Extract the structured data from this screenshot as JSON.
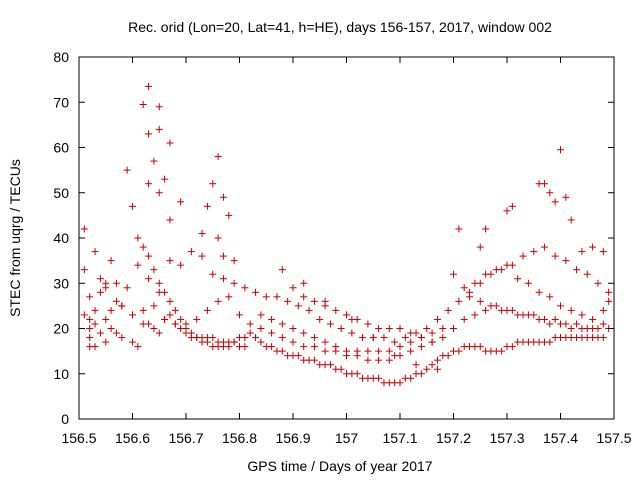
{
  "chart_data": {
    "type": "scatter",
    "title": "Rec. orid (Lon=20, Lat=41, h=HE), days 156-157, 2017, window 002",
    "xlabel": "GPS time / Days of year 2017",
    "ylabel": "STEC from uqrg / TECUs",
    "xlim": [
      156.5,
      157.5
    ],
    "ylim": [
      0,
      80
    ],
    "xticks": [
      "156.5",
      "156.6",
      "156.7",
      "156.8",
      "156.9",
      "157",
      "157.1",
      "157.2",
      "157.3",
      "157.4",
      "157.5"
    ],
    "xtick_values": [
      156.5,
      156.6,
      156.7,
      156.8,
      156.9,
      157.0,
      157.1,
      157.2,
      157.3,
      157.4,
      157.5
    ],
    "yticks": [
      "0",
      "10",
      "20",
      "30",
      "40",
      "50",
      "60",
      "70",
      "80"
    ],
    "ytick_values": [
      0,
      10,
      20,
      30,
      40,
      50,
      60,
      70,
      80
    ],
    "grid": false,
    "marker": "+",
    "marker_color": "#cc0000",
    "series": [
      {
        "name": "STEC",
        "x": [
          156.51,
          156.52,
          156.53,
          156.53,
          156.52,
          156.54,
          156.52,
          156.55,
          156.53,
          156.52,
          156.51,
          156.53,
          156.54,
          156.51,
          156.52,
          156.55,
          156.56,
          156.55,
          156.54,
          156.57,
          156.58,
          156.56,
          156.55,
          156.56,
          156.57,
          156.58,
          156.6,
          156.61,
          156.59,
          156.6,
          156.62,
          156.63,
          156.64,
          156.65,
          156.66,
          156.67,
          156.61,
          156.62,
          156.63,
          156.64,
          156.65,
          156.66,
          156.67,
          156.68,
          156.69,
          156.7,
          156.71,
          156.72,
          156.73,
          156.74,
          156.75,
          156.76,
          156.77,
          156.78,
          156.79,
          156.8,
          156.81,
          156.62,
          156.63,
          156.64,
          156.65,
          156.66,
          156.67,
          156.68,
          156.69,
          156.7,
          156.71,
          156.72,
          156.73,
          156.74,
          156.75,
          156.76,
          156.77,
          156.78,
          156.79,
          156.8,
          156.81,
          156.82,
          156.83,
          156.84,
          156.85,
          156.86,
          156.87,
          156.88,
          156.89,
          156.9,
          156.91,
          156.92,
          156.93,
          156.94,
          156.95,
          156.96,
          156.97,
          156.98,
          156.99,
          157.0,
          157.01,
          157.02,
          157.03,
          157.04,
          157.05,
          157.06,
          157.07,
          157.08,
          157.09,
          157.1,
          157.11,
          157.12,
          157.13,
          157.14,
          157.15,
          157.16,
          157.17,
          157.18,
          157.19,
          157.2,
          157.21,
          157.22,
          157.23,
          157.24,
          157.25,
          157.26,
          157.27,
          157.28,
          157.29,
          157.3,
          157.31,
          157.32,
          157.33,
          157.34,
          157.35,
          157.36,
          157.37,
          157.38,
          157.39,
          157.4,
          157.41,
          157.42,
          157.43,
          157.44,
          157.45,
          157.46,
          157.47,
          157.48,
          157.49,
          156.58,
          156.6,
          156.62,
          156.64,
          156.66,
          156.68,
          156.7,
          156.72,
          156.74,
          156.76,
          156.78,
          156.8,
          156.82,
          156.84,
          156.86,
          156.88,
          156.9,
          156.92,
          156.94,
          156.96,
          156.98,
          157.0,
          157.02,
          157.04,
          157.06,
          157.08,
          157.1,
          157.12,
          157.14,
          157.16,
          157.18,
          157.2,
          157.22,
          157.24,
          157.26,
          157.28,
          157.3,
          157.32,
          157.34,
          157.36,
          157.38,
          157.4,
          157.42,
          157.44,
          157.46,
          157.48,
          156.84,
          156.86,
          156.88,
          156.9,
          156.92,
          156.94,
          156.96,
          156.98,
          157.0,
          157.02,
          157.04,
          157.06,
          157.08,
          157.1,
          157.12,
          157.14,
          157.16,
          157.18,
          157.2,
          156.57,
          156.59,
          156.61,
          156.63,
          156.65,
          156.67,
          156.69,
          156.71,
          156.73,
          156.75,
          156.77,
          156.79,
          156.81,
          156.83,
          156.85,
          156.87,
          156.89,
          156.91,
          156.93,
          156.95,
          156.97,
          156.99,
          157.01,
          157.03,
          157.05,
          157.07,
          157.09,
          157.11,
          157.13,
          157.15,
          157.17,
          157.19,
          157.21,
          157.23,
          157.25,
          157.27,
          157.29,
          157.31,
          157.33,
          157.35,
          157.37,
          157.39,
          157.41,
          157.43,
          157.45,
          157.47,
          157.49,
          157.22,
          157.24,
          157.26,
          157.28,
          157.3,
          157.32,
          157.34,
          157.36,
          157.38,
          157.4,
          157.42,
          157.44,
          157.46,
          157.48,
          157.23,
          157.25,
          157.27,
          157.29,
          157.31,
          157.33,
          157.35,
          157.37,
          157.39,
          157.41,
          157.43,
          157.45,
          157.47,
          157.49,
          156.63,
          156.65,
          156.69,
          156.73,
          156.75,
          156.76,
          156.77,
          156.78,
          156.79,
          156.63,
          156.65,
          156.67,
          156.74,
          156.76,
          156.77,
          157.21,
          157.25,
          157.26,
          157.3,
          157.31,
          157.36,
          157.37,
          157.38,
          157.39,
          157.4,
          157.41,
          157.42,
          157.44,
          157.46,
          157.48,
          156.9,
          156.92,
          156.94,
          156.96,
          156.98,
          157.0,
          157.02,
          157.04,
          157.06,
          157.08,
          157.1,
          157.12,
          157.14,
          157.16,
          156.88,
          156.92,
          156.96,
          157.01,
          157.05,
          157.09,
          157.13,
          157.17
        ],
        "y": [
          23,
          22,
          24,
          21,
          20,
          19,
          18,
          17,
          16,
          16,
          42,
          37,
          31,
          33,
          27,
          29,
          35,
          30,
          28,
          26,
          25,
          24,
          22,
          20,
          19,
          18,
          17,
          16,
          55,
          47,
          69.5,
          63,
          57,
          69,
          53,
          44,
          40,
          38,
          36,
          33,
          30,
          28,
          26,
          24,
          22,
          20,
          19,
          18,
          17,
          17,
          16,
          16,
          16,
          16,
          17,
          16,
          16,
          21,
          21,
          20,
          19,
          22,
          23,
          21,
          20,
          19,
          18,
          18,
          18,
          18,
          18,
          17,
          17,
          17,
          17,
          18,
          18,
          19,
          18,
          17,
          16,
          16,
          15,
          15,
          14,
          14,
          14,
          13,
          13,
          13,
          12,
          12,
          12,
          11,
          11,
          10,
          10,
          10,
          9,
          9,
          9,
          9,
          8,
          8,
          8,
          8,
          9,
          9,
          10,
          10,
          11,
          12,
          13,
          14,
          14,
          15,
          15,
          16,
          16,
          16,
          16,
          15,
          15,
          15,
          15,
          16,
          16,
          17,
          17,
          17,
          17,
          17,
          17,
          17,
          18,
          18,
          18,
          18,
          18,
          18,
          18,
          18,
          18,
          18,
          26,
          25,
          23,
          24,
          25,
          22,
          21,
          21,
          22,
          24,
          26,
          27,
          23,
          21,
          20,
          19,
          18,
          17,
          16,
          16,
          15,
          15,
          14,
          14,
          13,
          13,
          13,
          14,
          15,
          16,
          17,
          18,
          20,
          22,
          23,
          24,
          25,
          24,
          23,
          23,
          22,
          21,
          21,
          20,
          20,
          20,
          24,
          23,
          22,
          21,
          20,
          19,
          18,
          17,
          16,
          15,
          15,
          15,
          15,
          15,
          16,
          17,
          18,
          19,
          20,
          32,
          30,
          29,
          34,
          31,
          28,
          35,
          34,
          37,
          36,
          32,
          31,
          30,
          29,
          28,
          27,
          27,
          26,
          25,
          24,
          22,
          21,
          20,
          19,
          18,
          18,
          18,
          17,
          18,
          19,
          20,
          22,
          24,
          26,
          28,
          30,
          32,
          33,
          34,
          36,
          37,
          38,
          36,
          35,
          33,
          32,
          30,
          28,
          29,
          30,
          32,
          33,
          34,
          31,
          30,
          28,
          27,
          25,
          24,
          23,
          22,
          21,
          27,
          26,
          25,
          24,
          24,
          23,
          23,
          22,
          22,
          21,
          21,
          20,
          20,
          20,
          52,
          50,
          48,
          41,
          52,
          58,
          49,
          45,
          35,
          73.5,
          64,
          61,
          47,
          40,
          36,
          42,
          38,
          42,
          46,
          47,
          52,
          52,
          50,
          48,
          59.5,
          49,
          44,
          37,
          38,
          37,
          29,
          27,
          26,
          25,
          24,
          23,
          22,
          21,
          20,
          20,
          20,
          19,
          18,
          17,
          33,
          30,
          26,
          22,
          18,
          14,
          12,
          11
        ]
      }
    ]
  }
}
